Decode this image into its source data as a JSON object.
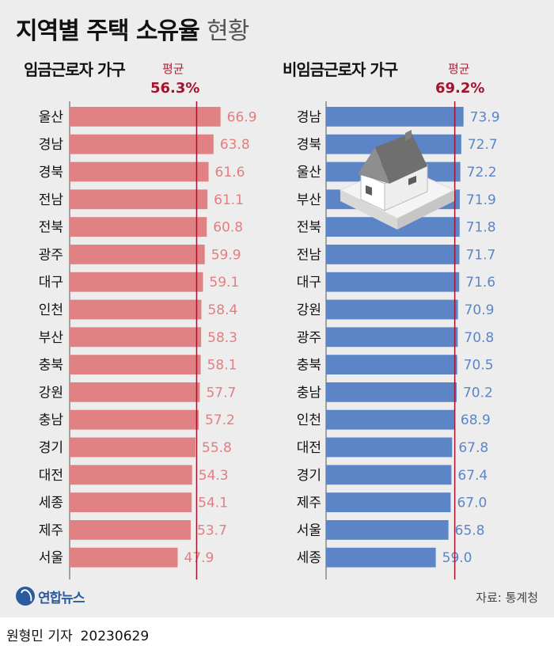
{
  "title": "지역별 주택 소유율",
  "title_suffix": "현황",
  "source": "자료: 통계청",
  "logo": "연합뉴스",
  "footer": {
    "author": "원형민 기자",
    "date": "20230629"
  },
  "colors": {
    "left_bar": "#e08284",
    "left_label": "#e27e80",
    "right_bar": "#5c85c8",
    "right_label": "#5c85c8",
    "avg_line": "#a3122e"
  },
  "chart_data": [
    {
      "type": "bar",
      "orientation": "horizontal",
      "title": "임금근로자 가구",
      "avg_label": "평균",
      "avg_value": 56.3,
      "avg_text": "56.3%",
      "categories": [
        "울산",
        "경남",
        "경북",
        "전남",
        "전북",
        "광주",
        "대구",
        "인천",
        "부산",
        "충북",
        "강원",
        "충남",
        "경기",
        "대전",
        "세종",
        "제주",
        "서울"
      ],
      "values": [
        66.9,
        63.8,
        61.6,
        61.1,
        60.8,
        59.9,
        59.1,
        58.4,
        58.3,
        58.1,
        57.7,
        57.2,
        55.8,
        54.3,
        54.1,
        53.7,
        47.9
      ],
      "value_labels": [
        "66.9",
        "63.8",
        "61.6",
        "61.1",
        "60.8",
        "59.9",
        "59.1",
        "58.4",
        "58.3",
        "58.1",
        "57.7",
        "57.2",
        "55.8",
        "54.3",
        "54.1",
        "53.7",
        "47.9"
      ]
    },
    {
      "type": "bar",
      "orientation": "horizontal",
      "title": "비임금근로자 가구",
      "avg_label": "평균",
      "avg_value": 69.2,
      "avg_text": "69.2%",
      "categories": [
        "경남",
        "경북",
        "울산",
        "부산",
        "전북",
        "전남",
        "대구",
        "강원",
        "광주",
        "충북",
        "충남",
        "인천",
        "대전",
        "경기",
        "제주",
        "서울",
        "세종"
      ],
      "values": [
        73.9,
        72.7,
        72.2,
        71.9,
        71.8,
        71.7,
        71.6,
        70.9,
        70.8,
        70.5,
        70.2,
        68.9,
        67.8,
        67.4,
        67.0,
        65.8,
        59.0
      ],
      "value_labels": [
        "73.9",
        "72.7",
        "72.2",
        "71.9",
        "71.8",
        "71.7",
        "71.6",
        "70.9",
        "70.8",
        "70.5",
        "70.2",
        "68.9",
        "67.8",
        "67.4",
        "67.0",
        "65.8",
        "59.0"
      ]
    }
  ]
}
